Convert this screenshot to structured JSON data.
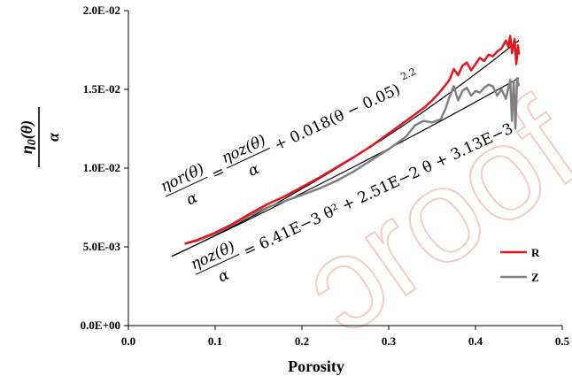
{
  "chart_data": {
    "type": "line",
    "xlabel": "Porosity",
    "ylabel": "η0(θ) / α",
    "xlim": [
      0.0,
      0.5
    ],
    "ylim": [
      0.0,
      0.02
    ],
    "x_ticks": [
      "0.0",
      "0.1",
      "0.2",
      "0.3",
      "0.4",
      "0.5"
    ],
    "y_ticks": [
      "0.0E+00",
      "5.0E-03",
      "1.0E-02",
      "1.5E-02",
      "2.0E-02"
    ],
    "grid": false,
    "legend": {
      "placement": "bottom-right"
    },
    "series": [
      {
        "name": "R",
        "color": "#e8141b",
        "x": [
          0.065,
          0.08,
          0.1,
          0.12,
          0.14,
          0.16,
          0.18,
          0.2,
          0.22,
          0.24,
          0.26,
          0.28,
          0.3,
          0.32,
          0.34,
          0.35,
          0.36,
          0.37,
          0.375,
          0.38,
          0.385,
          0.39,
          0.395,
          0.4,
          0.405,
          0.41,
          0.415,
          0.42,
          0.425,
          0.43,
          0.435,
          0.438,
          0.44,
          0.442,
          0.445,
          0.447,
          0.449,
          0.45
        ],
        "y": [
          0.0052,
          0.00545,
          0.0059,
          0.00645,
          0.0071,
          0.0077,
          0.0082,
          0.0088,
          0.0094,
          0.01005,
          0.0107,
          0.0114,
          0.0122,
          0.013,
          0.0138,
          0.0143,
          0.0149,
          0.0156,
          0.0163,
          0.0159,
          0.0165,
          0.0167,
          0.0162,
          0.0166,
          0.017,
          0.0168,
          0.0172,
          0.0171,
          0.0174,
          0.0176,
          0.0181,
          0.0177,
          0.0184,
          0.0173,
          0.0182,
          0.0166,
          0.0178,
          0.0172
        ]
      },
      {
        "name": "Z",
        "color": "#808080",
        "x": [
          0.065,
          0.08,
          0.1,
          0.12,
          0.14,
          0.16,
          0.18,
          0.2,
          0.22,
          0.24,
          0.26,
          0.28,
          0.3,
          0.32,
          0.33,
          0.34,
          0.35,
          0.36,
          0.365,
          0.37,
          0.375,
          0.38,
          0.385,
          0.39,
          0.395,
          0.4,
          0.405,
          0.41,
          0.415,
          0.42,
          0.425,
          0.43,
          0.435,
          0.44,
          0.442,
          0.444,
          0.446,
          0.448,
          0.45
        ],
        "y": [
          0.0052,
          0.0054,
          0.00585,
          0.0064,
          0.007,
          0.0075,
          0.0079,
          0.0083,
          0.0087,
          0.0092,
          0.0098,
          0.0105,
          0.0112,
          0.012,
          0.0127,
          0.013,
          0.0129,
          0.0131,
          0.0137,
          0.0145,
          0.0152,
          0.0143,
          0.0149,
          0.0151,
          0.0146,
          0.0149,
          0.0148,
          0.0151,
          0.0153,
          0.0152,
          0.0146,
          0.015,
          0.0144,
          0.0156,
          0.013,
          0.0155,
          0.0125,
          0.0157,
          0.0152
        ]
      }
    ],
    "fits": [
      {
        "kind": "quadratic",
        "a": 0.00641,
        "b": 0.0251,
        "c": 0.00313,
        "x_range": [
          0.05,
          0.45
        ],
        "label_lhs": "ηoz(θ)",
        "label_den": "α",
        "label_rhs": "= 6.41E−3 θ² + 2.51E−2 θ + 3.13E−3"
      },
      {
        "kind": "power",
        "coef": 0.018,
        "shift": 0.05,
        "power": 2.2,
        "x_range": [
          0.05,
          0.45
        ],
        "label_lhs": "ηor(θ)",
        "label_den": "α",
        "label_mid": "ηoz(θ)",
        "label_rhs": "+ 0.018(θ − 0.05)",
        "label_exp": "2.2"
      }
    ],
    "fit_color": "#000000"
  }
}
